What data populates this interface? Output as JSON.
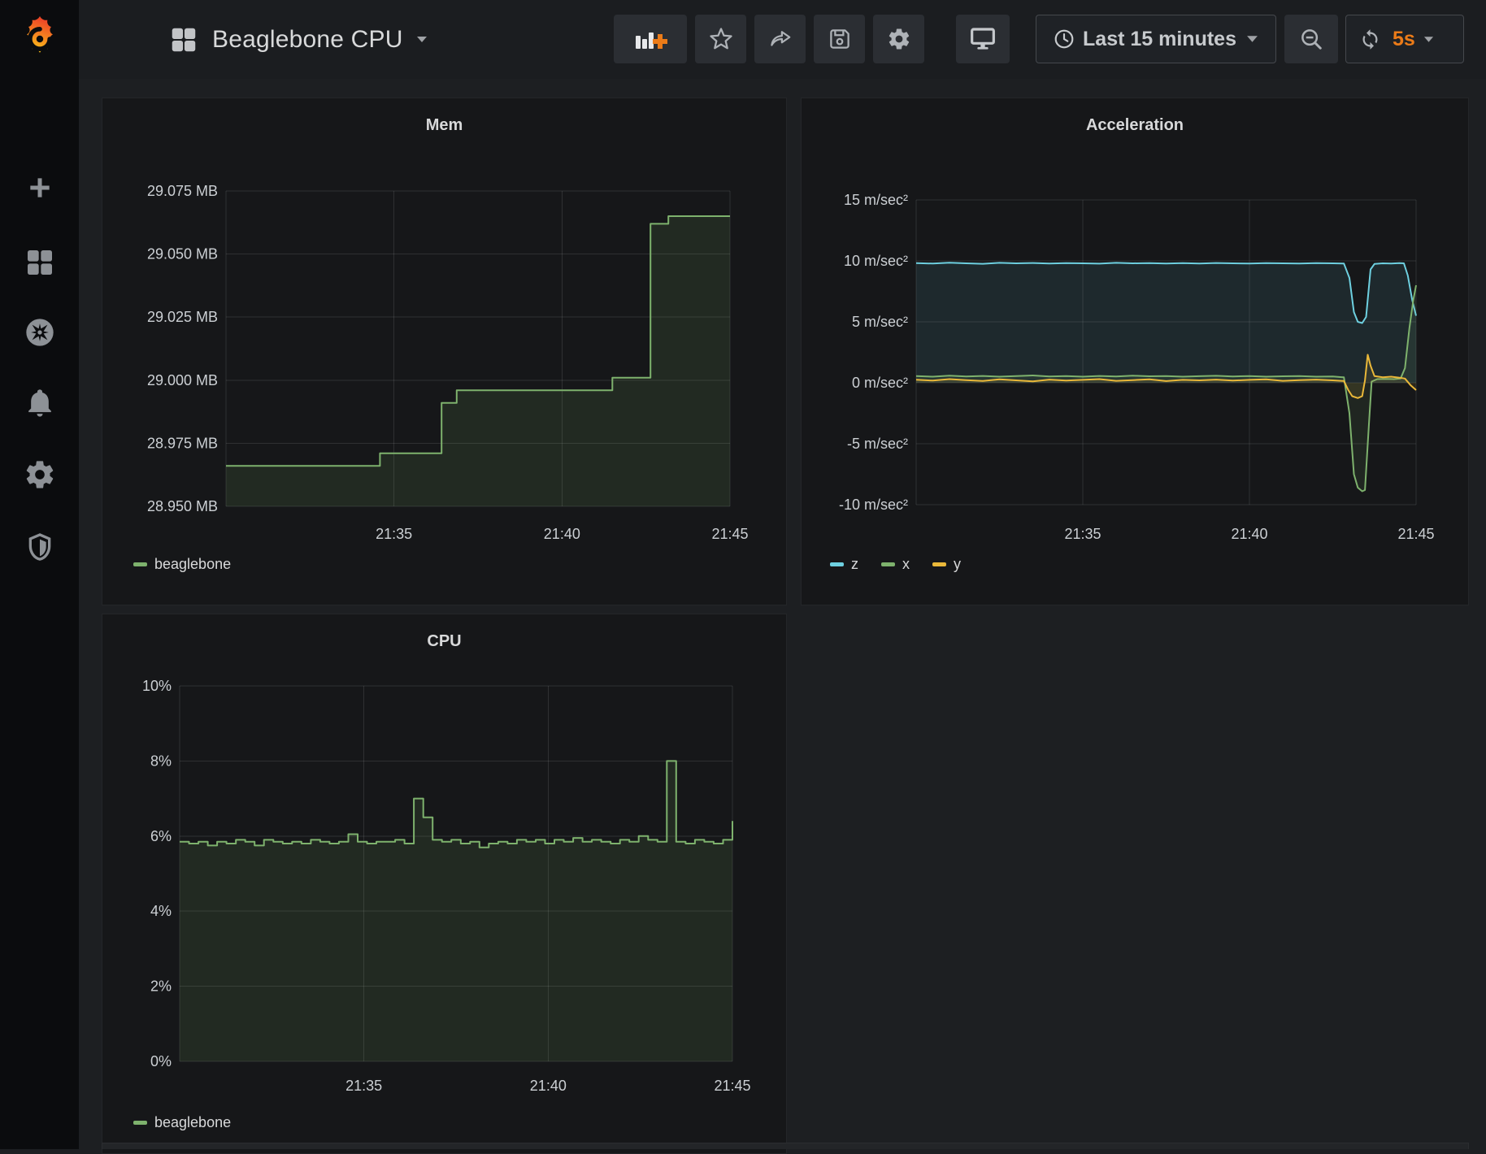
{
  "navbar": {
    "title": "Beaglebone CPU",
    "time_picker_label": "Last 15 minutes",
    "refresh_interval": "5s"
  },
  "sidebar": {
    "items": [
      "create",
      "dashboards",
      "explore",
      "alerting",
      "configuration",
      "server-admin"
    ]
  },
  "colors": {
    "green": "#7eb26d",
    "yellow": "#eab839",
    "blue": "#6ed0e0",
    "orange": "#eb7b18"
  },
  "chart_data": [
    {
      "type": "line",
      "title": "Mem",
      "line_mode": "step",
      "legend_position": "bottom-left",
      "grid": true,
      "x_range": [
        0,
        900
      ],
      "x_ticks": [
        {
          "t": 300,
          "label": "21:35"
        },
        {
          "t": 600,
          "label": "21:40"
        },
        {
          "t": 900,
          "label": "21:45"
        }
      ],
      "y_range": [
        28.95,
        29.075
      ],
      "y_ticks": [
        {
          "v": 29.075,
          "label": "29.075 MB"
        },
        {
          "v": 29.05,
          "label": "29.050 MB"
        },
        {
          "v": 29.025,
          "label": "29.025 MB"
        },
        {
          "v": 29.0,
          "label": "29.000 MB"
        },
        {
          "v": 28.975,
          "label": "28.975 MB"
        },
        {
          "v": 28.95,
          "label": "28.950 MB"
        }
      ],
      "series": [
        {
          "name": "beaglebone",
          "color": "#7eb26d",
          "fill_opacity": 0.12,
          "points": [
            [
              0,
              28.966
            ],
            [
              275,
              28.966
            ],
            [
              275,
              28.971
            ],
            [
              385,
              28.971
            ],
            [
              385,
              28.991
            ],
            [
              412,
              28.991
            ],
            [
              412,
              28.996
            ],
            [
              690,
              28.996
            ],
            [
              690,
              29.001
            ],
            [
              758,
              29.001
            ],
            [
              758,
              29.062
            ],
            [
              790,
              29.062
            ],
            [
              790,
              29.065
            ],
            [
              900,
              29.065
            ]
          ]
        }
      ]
    },
    {
      "type": "line",
      "title": "Acceleration",
      "line_mode": "linear",
      "legend_position": "bottom-left",
      "grid": true,
      "x_range": [
        0,
        900
      ],
      "x_ticks": [
        {
          "t": 300,
          "label": "21:35"
        },
        {
          "t": 600,
          "label": "21:40"
        },
        {
          "t": 900,
          "label": "21:45"
        }
      ],
      "y_range": [
        -10,
        15
      ],
      "y_ticks": [
        {
          "v": 15,
          "label": "15 m/sec²"
        },
        {
          "v": 10,
          "label": "10 m/sec²"
        },
        {
          "v": 5,
          "label": "5 m/sec²"
        },
        {
          "v": 0,
          "label": "0 m/sec²"
        },
        {
          "v": -5,
          "label": "-5 m/sec²"
        },
        {
          "v": -10,
          "label": "-10 m/sec²"
        }
      ],
      "series": [
        {
          "name": "z",
          "color": "#6ed0e0",
          "fill_opacity": 0.1,
          "points": [
            [
              0,
              9.82
            ],
            [
              30,
              9.78
            ],
            [
              60,
              9.85
            ],
            [
              90,
              9.8
            ],
            [
              120,
              9.76
            ],
            [
              150,
              9.84
            ],
            [
              180,
              9.8
            ],
            [
              210,
              9.83
            ],
            [
              240,
              9.78
            ],
            [
              270,
              9.82
            ],
            [
              300,
              9.8
            ],
            [
              330,
              9.77
            ],
            [
              360,
              9.84
            ],
            [
              390,
              9.8
            ],
            [
              420,
              9.82
            ],
            [
              450,
              9.78
            ],
            [
              480,
              9.81
            ],
            [
              510,
              9.79
            ],
            [
              540,
              9.83
            ],
            [
              570,
              9.8
            ],
            [
              600,
              9.78
            ],
            [
              630,
              9.82
            ],
            [
              660,
              9.8
            ],
            [
              690,
              9.79
            ],
            [
              720,
              9.82
            ],
            [
              750,
              9.8
            ],
            [
              770,
              9.78
            ],
            [
              780,
              8.6
            ],
            [
              788,
              5.8
            ],
            [
              795,
              5.0
            ],
            [
              803,
              4.9
            ],
            [
              810,
              5.4
            ],
            [
              818,
              9.3
            ],
            [
              825,
              9.75
            ],
            [
              840,
              9.8
            ],
            [
              855,
              9.78
            ],
            [
              870,
              9.82
            ],
            [
              878,
              9.8
            ],
            [
              885,
              8.8
            ],
            [
              893,
              6.8
            ],
            [
              900,
              5.5
            ]
          ]
        },
        {
          "name": "x",
          "color": "#7eb26d",
          "fill_opacity": 0.1,
          "points": [
            [
              0,
              0.55
            ],
            [
              30,
              0.5
            ],
            [
              60,
              0.58
            ],
            [
              90,
              0.52
            ],
            [
              120,
              0.56
            ],
            [
              150,
              0.5
            ],
            [
              180,
              0.55
            ],
            [
              210,
              0.6
            ],
            [
              240,
              0.52
            ],
            [
              270,
              0.55
            ],
            [
              300,
              0.5
            ],
            [
              330,
              0.56
            ],
            [
              360,
              0.52
            ],
            [
              390,
              0.58
            ],
            [
              420,
              0.53
            ],
            [
              450,
              0.55
            ],
            [
              480,
              0.5
            ],
            [
              510,
              0.54
            ],
            [
              540,
              0.57
            ],
            [
              570,
              0.52
            ],
            [
              600,
              0.55
            ],
            [
              630,
              0.5
            ],
            [
              660,
              0.53
            ],
            [
              690,
              0.55
            ],
            [
              720,
              0.5
            ],
            [
              750,
              0.52
            ],
            [
              770,
              0.45
            ],
            [
              780,
              -2.5
            ],
            [
              788,
              -7.5
            ],
            [
              795,
              -8.6
            ],
            [
              803,
              -8.9
            ],
            [
              808,
              -8.8
            ],
            [
              815,
              -3.5
            ],
            [
              820,
              0.1
            ],
            [
              830,
              0.3
            ],
            [
              845,
              0.32
            ],
            [
              860,
              0.3
            ],
            [
              872,
              0.35
            ],
            [
              880,
              1.2
            ],
            [
              888,
              4.5
            ],
            [
              895,
              6.8
            ],
            [
              900,
              8.0
            ]
          ]
        },
        {
          "name": "y",
          "color": "#eab839",
          "fill_opacity": 0.1,
          "points": [
            [
              0,
              0.25
            ],
            [
              30,
              0.18
            ],
            [
              60,
              0.3
            ],
            [
              90,
              0.22
            ],
            [
              120,
              0.15
            ],
            [
              150,
              0.28
            ],
            [
              180,
              0.2
            ],
            [
              210,
              0.12
            ],
            [
              240,
              0.26
            ],
            [
              270,
              0.18
            ],
            [
              300,
              0.24
            ],
            [
              330,
              0.3
            ],
            [
              360,
              0.16
            ],
            [
              390,
              0.22
            ],
            [
              420,
              0.28
            ],
            [
              450,
              0.14
            ],
            [
              480,
              0.24
            ],
            [
              510,
              0.2
            ],
            [
              540,
              0.26
            ],
            [
              570,
              0.18
            ],
            [
              600,
              0.24
            ],
            [
              630,
              0.28
            ],
            [
              660,
              0.16
            ],
            [
              690,
              0.22
            ],
            [
              720,
              0.26
            ],
            [
              750,
              0.2
            ],
            [
              770,
              0.15
            ],
            [
              778,
              -0.6
            ],
            [
              785,
              -1.1
            ],
            [
              795,
              -1.25
            ],
            [
              803,
              -1.1
            ],
            [
              808,
              0.2
            ],
            [
              813,
              2.3
            ],
            [
              818,
              1.4
            ],
            [
              825,
              0.55
            ],
            [
              840,
              0.45
            ],
            [
              855,
              0.5
            ],
            [
              870,
              0.42
            ],
            [
              880,
              0.35
            ],
            [
              890,
              -0.2
            ],
            [
              900,
              -0.6
            ]
          ]
        }
      ]
    },
    {
      "type": "line",
      "title": "CPU",
      "line_mode": "step",
      "legend_position": "bottom-left",
      "grid": true,
      "x_range": [
        0,
        900
      ],
      "x_ticks": [
        {
          "t": 300,
          "label": "21:35"
        },
        {
          "t": 600,
          "label": "21:40"
        },
        {
          "t": 900,
          "label": "21:45"
        }
      ],
      "y_range": [
        0,
        10
      ],
      "y_ticks": [
        {
          "v": 10,
          "label": "10%"
        },
        {
          "v": 8,
          "label": "8%"
        },
        {
          "v": 6,
          "label": "6%"
        },
        {
          "v": 4,
          "label": "4%"
        },
        {
          "v": 2,
          "label": "2%"
        },
        {
          "v": 0,
          "label": "0%"
        }
      ],
      "series": [
        {
          "name": "beaglebone",
          "color": "#7eb26d",
          "fill_opacity": 0.12,
          "values": [
            5.85,
            5.8,
            5.85,
            5.75,
            5.85,
            5.8,
            5.9,
            5.85,
            5.75,
            5.9,
            5.85,
            5.8,
            5.85,
            5.8,
            5.9,
            5.85,
            5.8,
            5.85,
            6.05,
            5.85,
            5.8,
            5.85,
            5.85,
            5.9,
            5.8,
            7.0,
            6.5,
            5.9,
            5.85,
            5.9,
            5.8,
            5.85,
            5.7,
            5.8,
            5.85,
            5.8,
            5.9,
            5.85,
            5.9,
            5.8,
            5.9,
            5.85,
            5.95,
            5.85,
            5.9,
            5.85,
            5.8,
            5.9,
            5.85,
            6.0,
            5.9,
            5.85,
            8.0,
            5.85,
            5.8,
            5.9,
            5.85,
            5.8,
            5.9,
            6.4
          ]
        }
      ]
    }
  ]
}
